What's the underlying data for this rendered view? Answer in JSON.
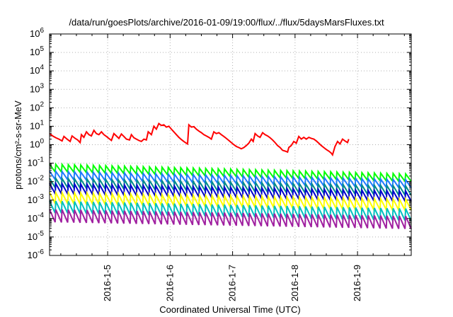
{
  "chart_data": {
    "type": "line",
    "title": "/data/run/goesPlots/archive/2016-01-09/19:00/flux/../flux/5daysMarsFluxes.txt",
    "xlabel": "Coordinated Universal Time (UTC)",
    "ylabel": "protons/cm²-s-sr-MeV",
    "yscale": "log",
    "ylim": [
      1e-06,
      1000000.0
    ],
    "xlim": [
      4.07,
      9.86
    ],
    "x_ticks": [
      {
        "value": 5,
        "label": "2016-1-5"
      },
      {
        "value": 6,
        "label": "2016-1-6"
      },
      {
        "value": 7,
        "label": "2016-1-7"
      },
      {
        "value": 8,
        "label": "2016-1-8"
      },
      {
        "value": 9,
        "label": "2016-1-9"
      }
    ],
    "y_ticks": [
      {
        "exp": -6,
        "label": "10-6"
      },
      {
        "exp": -5,
        "label": "10-5"
      },
      {
        "exp": -4,
        "label": "10-4"
      },
      {
        "exp": -3,
        "label": "10-3"
      },
      {
        "exp": -2,
        "label": "10-2"
      },
      {
        "exp": -1,
        "label": "10-1"
      },
      {
        "exp": 0,
        "label": "100"
      },
      {
        "exp": 1,
        "label": "101"
      },
      {
        "exp": 2,
        "label": "102"
      },
      {
        "exp": 3,
        "label": "103"
      },
      {
        "exp": 4,
        "label": "104"
      },
      {
        "exp": 5,
        "label": "105"
      },
      {
        "exp": 6,
        "label": "106"
      }
    ],
    "grid": true,
    "series": [
      {
        "color": "#ff0000",
        "sawtooth": false,
        "points": [
          [
            4.07,
            4.0
          ],
          [
            4.12,
            3.0
          ],
          [
            4.17,
            2.4
          ],
          [
            4.22,
            2.0
          ],
          [
            4.27,
            1.6
          ],
          [
            4.3,
            2.8
          ],
          [
            4.35,
            2.0
          ],
          [
            4.4,
            1.5
          ],
          [
            4.43,
            3.0
          ],
          [
            4.48,
            2.2
          ],
          [
            4.52,
            1.8
          ],
          [
            4.56,
            1.3
          ],
          [
            4.58,
            3.5
          ],
          [
            4.62,
            2.5
          ],
          [
            4.66,
            5.0
          ],
          [
            4.7,
            3.5
          ],
          [
            4.74,
            3.0
          ],
          [
            4.78,
            6.0
          ],
          [
            4.82,
            4.0
          ],
          [
            4.86,
            3.5
          ],
          [
            4.9,
            5.0
          ],
          [
            4.94,
            3.5
          ],
          [
            4.98,
            2.8
          ],
          [
            5.02,
            2.2
          ],
          [
            5.06,
            1.7
          ],
          [
            5.1,
            4.0
          ],
          [
            5.14,
            3.0
          ],
          [
            5.18,
            2.2
          ],
          [
            5.22,
            3.8
          ],
          [
            5.26,
            2.8
          ],
          [
            5.3,
            2.0
          ],
          [
            5.35,
            1.8
          ],
          [
            5.38,
            3.5
          ],
          [
            5.42,
            2.4
          ],
          [
            5.46,
            2.0
          ],
          [
            5.5,
            1.7
          ],
          [
            5.54,
            1.5
          ],
          [
            5.58,
            2.0
          ],
          [
            5.62,
            1.8
          ],
          [
            5.65,
            5.0
          ],
          [
            5.7,
            3.5
          ],
          [
            5.74,
            10.0
          ],
          [
            5.78,
            7.0
          ],
          [
            5.82,
            14.0
          ],
          [
            5.86,
            11.0
          ],
          [
            5.9,
            12.0
          ],
          [
            5.94,
            9.0
          ],
          [
            5.98,
            10.0
          ],
          [
            6.02,
            7.0
          ],
          [
            6.06,
            5.0
          ],
          [
            6.1,
            3.5
          ],
          [
            6.14,
            2.5
          ],
          [
            6.18,
            1.9
          ],
          [
            6.22,
            1.5
          ],
          [
            6.26,
            1.2
          ],
          [
            6.28,
            1.1
          ],
          [
            6.3,
            12.0
          ],
          [
            6.34,
            9.0
          ],
          [
            6.38,
            9.5
          ],
          [
            6.42,
            7.0
          ],
          [
            6.46,
            5.5
          ],
          [
            6.5,
            4.5
          ],
          [
            6.54,
            3.5
          ],
          [
            6.58,
            3.0
          ],
          [
            6.62,
            2.5
          ],
          [
            6.66,
            2.0
          ],
          [
            6.7,
            5.0
          ],
          [
            6.74,
            4.0
          ],
          [
            6.78,
            4.5
          ],
          [
            6.82,
            3.5
          ],
          [
            6.86,
            2.8
          ],
          [
            6.9,
            2.2
          ],
          [
            6.94,
            1.7
          ],
          [
            6.98,
            1.3
          ],
          [
            7.02,
            1.0
          ],
          [
            7.06,
            0.8
          ],
          [
            7.1,
            0.7
          ],
          [
            7.14,
            0.6
          ],
          [
            7.18,
            0.7
          ],
          [
            7.22,
            0.9
          ],
          [
            7.26,
            1.2
          ],
          [
            7.3,
            2.0
          ],
          [
            7.33,
            1.5
          ],
          [
            7.36,
            4.0
          ],
          [
            7.4,
            3.0
          ],
          [
            7.44,
            2.5
          ],
          [
            7.48,
            4.5
          ],
          [
            7.52,
            3.5
          ],
          [
            7.56,
            3.0
          ],
          [
            7.6,
            2.4
          ],
          [
            7.64,
            1.8
          ],
          [
            7.68,
            1.3
          ],
          [
            7.72,
            0.9
          ],
          [
            7.76,
            0.7
          ],
          [
            7.8,
            0.5
          ],
          [
            7.84,
            0.45
          ],
          [
            7.88,
            0.4
          ],
          [
            7.9,
            0.7
          ],
          [
            7.94,
            0.9
          ],
          [
            7.98,
            1.5
          ],
          [
            8.02,
            1.2
          ],
          [
            8.06,
            2.8
          ],
          [
            8.1,
            2.0
          ],
          [
            8.14,
            2.5
          ],
          [
            8.18,
            2.0
          ],
          [
            8.22,
            2.5
          ],
          [
            8.26,
            2.2
          ],
          [
            8.3,
            2.0
          ],
          [
            8.34,
            1.6
          ],
          [
            8.38,
            1.2
          ],
          [
            8.42,
            0.9
          ],
          [
            8.46,
            0.7
          ],
          [
            8.5,
            0.55
          ],
          [
            8.54,
            0.45
          ],
          [
            8.58,
            0.35
          ],
          [
            8.6,
            0.28
          ],
          [
            8.64,
            0.8
          ],
          [
            8.68,
            1.5
          ],
          [
            8.72,
            1.1
          ],
          [
            8.76,
            2.0
          ],
          [
            8.8,
            1.6
          ],
          [
            8.84,
            1.3
          ],
          [
            8.86,
            2.0
          ]
        ]
      },
      {
        "color": "#00ff00",
        "sawtooth": true,
        "start": 0.055,
        "end": 0.016,
        "amp": 2.6
      },
      {
        "color": "#1e7bff",
        "sawtooth": true,
        "start": 0.022,
        "end": 0.0075,
        "amp": 2.8
      },
      {
        "color": "#008b8b",
        "sawtooth": true,
        "start": 0.0085,
        "end": 0.0032,
        "amp": 3.2
      },
      {
        "color": "#0000cc",
        "sawtooth": true,
        "start": 0.0042,
        "end": 0.0016,
        "amp": 3.6
      },
      {
        "color": "#ffff00",
        "sawtooth": true,
        "start": 0.0013,
        "end": 0.00055,
        "amp": 4.0
      },
      {
        "color": "#00c0c0",
        "sawtooth": true,
        "start": 0.00042,
        "end": 0.00016,
        "amp": 4.5
      },
      {
        "color": "#a020a0",
        "sawtooth": true,
        "start": 0.00014,
        "end": 6e-05,
        "amp": 5.0
      }
    ]
  }
}
